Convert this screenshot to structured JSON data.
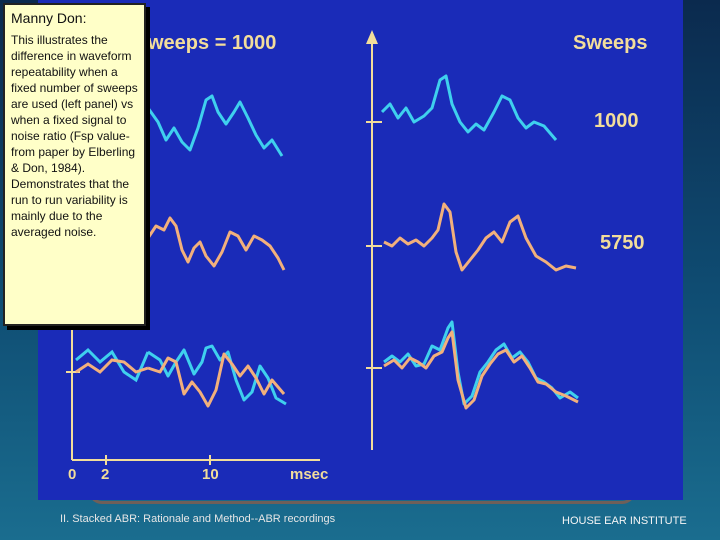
{
  "note": {
    "title": "Manny Don:",
    "body": "This illustrates the difference in waveform repeatability when a fixed number of sweeps are used (left panel) vs when a fixed signal to noise ratio (Fsp value- from paper by Elberling & Don, 1984). Demonstrates that the run to run variability is mainly due to the averaged noise."
  },
  "figure": {
    "left_title": "weeps = 1000",
    "right_title": "Sweeps",
    "conditions": [
      "1000",
      "5750"
    ],
    "x_ticks": [
      "0",
      "2",
      "10"
    ],
    "x_unit": "msec"
  },
  "colors": {
    "cyan": "#3fd0ee",
    "orange": "#f2b07c",
    "axis": "#f2dd9b",
    "panel": "#1a2bb8"
  },
  "footer": {
    "left": "II. Stacked ABR: Rationale and Method--ABR recordings",
    "right": "HOUSE EAR INSTITUTE"
  }
}
